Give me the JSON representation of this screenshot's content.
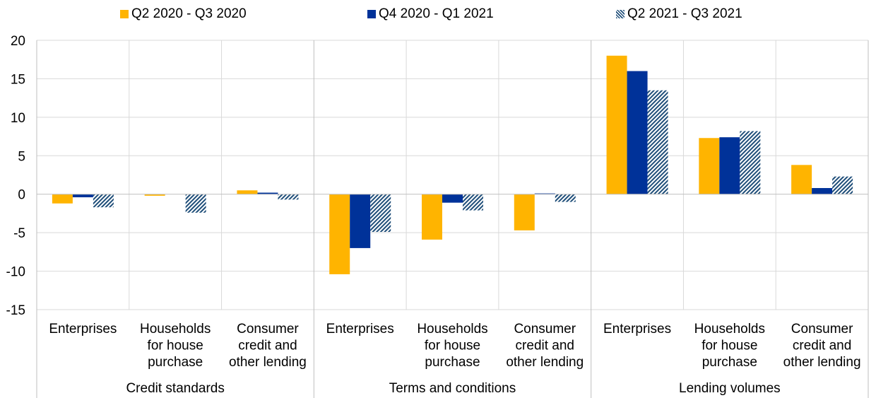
{
  "chart_data": {
    "type": "bar",
    "groups": [
      {
        "label": "Credit standards",
        "categories": [
          "Enterprises",
          "Households for house purchase",
          "Consumer credit and other lending"
        ]
      },
      {
        "label": "Terms and conditions",
        "categories": [
          "Enterprises",
          "Households for house purchase",
          "Consumer credit and other lending"
        ]
      },
      {
        "label": "Lending volumes",
        "categories": [
          "Enterprises",
          "Households for house purchase",
          "Consumer credit and other lending"
        ]
      }
    ],
    "category_lines": [
      [
        "Enterprises"
      ],
      [
        "Households",
        "for house",
        "purchase"
      ],
      [
        "Consumer",
        "credit and",
        "other lending"
      ]
    ],
    "series": [
      {
        "name": "Q2 2020 - Q3 2020",
        "color": "#FFB400",
        "pattern": "solid",
        "values": [
          -1.2,
          -0.2,
          0.5,
          -10.4,
          -5.9,
          -4.7,
          18.0,
          7.3,
          3.8
        ]
      },
      {
        "name": "Q4 2020 - Q1 2021",
        "color": "#003299",
        "pattern": "solid",
        "values": [
          -0.4,
          0.0,
          0.2,
          -7.0,
          -1.1,
          0.1,
          16.0,
          7.4,
          0.8
        ]
      },
      {
        "name": "Q2 2021 - Q3 2021",
        "color": "#1F4E79",
        "pattern": "hatched",
        "values": [
          -1.7,
          -2.4,
          -0.7,
          -4.9,
          -2.1,
          -1.0,
          13.5,
          8.2,
          2.3
        ]
      }
    ],
    "ylim": [
      -15,
      20
    ],
    "yticks": [
      -15,
      -10,
      -5,
      0,
      5,
      10,
      15,
      20
    ],
    "grid": true,
    "legend_position": "top"
  }
}
